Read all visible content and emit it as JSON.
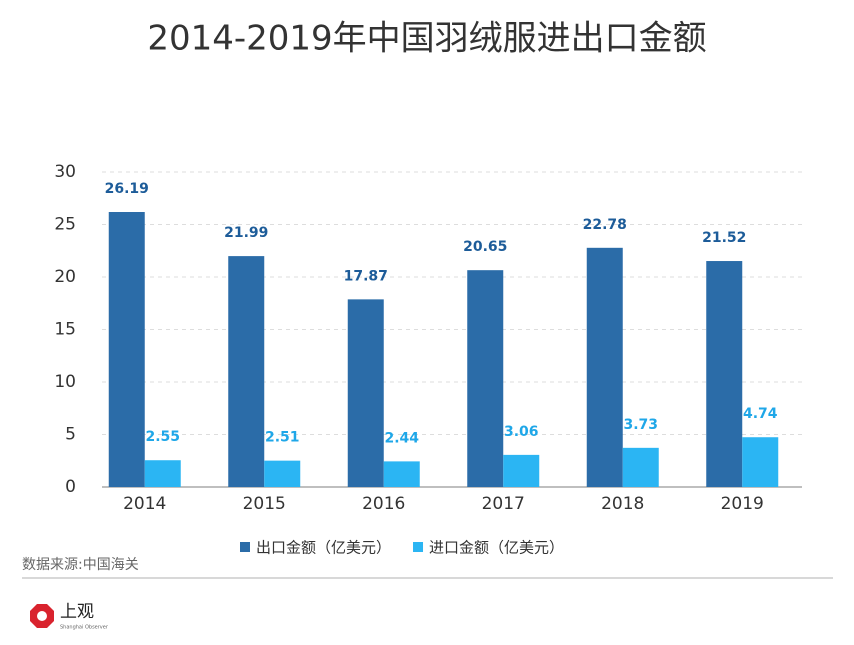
{
  "chart_data": {
    "type": "bar",
    "title": "2014-2019年中国羽绒服进出口金额",
    "categories": [
      "2014",
      "2015",
      "2016",
      "2017",
      "2018",
      "2019"
    ],
    "series": [
      {
        "name": "出口金额（亿美元）",
        "color": "#2b6ca8",
        "label_color": "#1d5c99",
        "values": [
          26.19,
          21.99,
          17.87,
          20.65,
          22.78,
          21.52
        ]
      },
      {
        "name": "进口金额（亿美元）",
        "color": "#2bb5f3",
        "label_color": "#1fa7e8",
        "values": [
          2.55,
          2.51,
          2.44,
          3.06,
          3.73,
          4.74
        ]
      }
    ],
    "ylim": [
      0,
      30
    ],
    "yticks": [
      0,
      5,
      10,
      15,
      20,
      25,
      30
    ],
    "grid": true,
    "legend": "bottom",
    "source": "数据来源:中国海关",
    "logo_text": "上观",
    "logo_subtext": "Shanghai Observer"
  }
}
